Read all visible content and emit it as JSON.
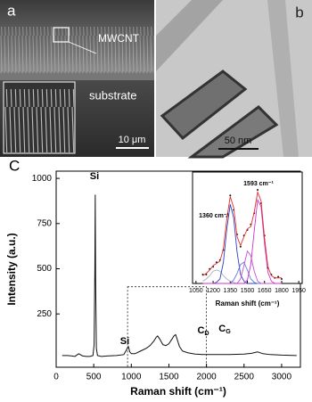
{
  "panels": {
    "a": {
      "label": "a",
      "texts": [
        "MWCNT",
        "substrate",
        "10 μm"
      ]
    },
    "b": {
      "label": "b",
      "scale": "50 nm"
    }
  },
  "chart_data": [
    {
      "type": "line",
      "panel_label": "C",
      "xlabel": "Raman shift (cm⁻¹)",
      "ylabel": "Intensity (a.u.)",
      "x": [
        80,
        150,
        200,
        250,
        300,
        350,
        400,
        450,
        490,
        505,
        515,
        520,
        525,
        535,
        550,
        600,
        700,
        800,
        900,
        940,
        960,
        980,
        1000,
        1050,
        1100,
        1150,
        1200,
        1250,
        1300,
        1330,
        1350,
        1380,
        1420,
        1460,
        1500,
        1540,
        1570,
        1590,
        1610,
        1640,
        1680,
        1750,
        1850,
        1950,
        2100,
        2300,
        2500,
        2600,
        2680,
        2750,
        2850,
        3000,
        3200
      ],
      "series": [
        {
          "color": "#111111",
          "values": [
            20,
            20,
            18,
            15,
            30,
            18,
            15,
            15,
            20,
            80,
            500,
            910,
            450,
            60,
            20,
            15,
            18,
            20,
            25,
            55,
            70,
            40,
            30,
            30,
            40,
            50,
            60,
            75,
            100,
            120,
            128,
            110,
            80,
            75,
            85,
            110,
            130,
            135,
            110,
            70,
            45,
            35,
            28,
            25,
            25,
            25,
            28,
            32,
            40,
            30,
            25,
            22,
            20
          ]
        }
      ],
      "xlim": [
        0,
        3250
      ],
      "ylim": [
        -45,
        1040
      ],
      "xticks": [
        0,
        500,
        1000,
        1500,
        2000,
        2500,
        3000
      ],
      "yticks": [
        250,
        500,
        750,
        1000
      ],
      "annotations": [
        {
          "text": "Si"
        },
        {
          "text": "Si"
        },
        {
          "text": "C",
          "sub": "D"
        },
        {
          "text": "C",
          "sub": "G"
        }
      ],
      "zoom_box": {
        "x": [
          950,
          2000
        ],
        "top": 400
      }
    },
    {
      "type": "line",
      "xlabel": "Raman shift (cm⁻¹)",
      "x": [
        1110,
        1140,
        1170,
        1200,
        1230,
        1260,
        1290,
        1320,
        1350,
        1380,
        1410,
        1440,
        1470,
        1500,
        1530,
        1560,
        1590,
        1620,
        1650,
        1680,
        1710,
        1740,
        1770,
        1800
      ],
      "series": [
        {
          "color": "#a8aec4",
          "style": "line",
          "values": [
            0.02,
            0.04,
            0.07,
            0.11,
            0.12,
            0.11,
            0.07,
            0.04,
            0.02,
            0.01,
            0,
            0,
            0,
            0,
            0,
            0,
            0,
            0,
            0,
            0,
            0,
            0,
            0,
            0
          ]
        },
        {
          "color": "#3040c0",
          "style": "line",
          "values": [
            0,
            0,
            0,
            0,
            0.01,
            0.04,
            0.19,
            0.49,
            0.71,
            0.59,
            0.28,
            0.08,
            0.02,
            0,
            0,
            0,
            0,
            0,
            0,
            0,
            0,
            0,
            0,
            0
          ]
        },
        {
          "color": "#5a78e0",
          "style": "line",
          "values": [
            0,
            0,
            0,
            0,
            0,
            0,
            0,
            0,
            0,
            0.03,
            0.09,
            0.17,
            0.19,
            0.12,
            0.04,
            0.01,
            0,
            0,
            0,
            0,
            0,
            0,
            0,
            0
          ]
        },
        {
          "color": "#c850d0",
          "style": "line",
          "values": [
            0,
            0,
            0,
            0,
            0,
            0,
            0,
            0,
            0,
            0,
            0,
            0.04,
            0.16,
            0.29,
            0.25,
            0.11,
            0.02,
            0,
            0,
            0,
            0,
            0,
            0,
            0
          ]
        },
        {
          "color": "#d030c8",
          "style": "line",
          "values": [
            0,
            0,
            0,
            0,
            0,
            0,
            0,
            0,
            0,
            0,
            0,
            0,
            0,
            0.03,
            0.17,
            0.47,
            0.75,
            0.69,
            0.36,
            0.1,
            0.02,
            0,
            0,
            0
          ]
        },
        {
          "color": "#111111",
          "style": "dots",
          "values": [
            0.08,
            0.08,
            0.13,
            0.15,
            0.19,
            0.21,
            0.3,
            0.6,
            0.79,
            0.66,
            0.44,
            0.33,
            0.43,
            0.48,
            0.53,
            0.63,
            0.84,
            0.72,
            0.43,
            0.14,
            0.08,
            0.05,
            0.06,
            0.04
          ]
        },
        {
          "color": "#e0302a",
          "style": "line",
          "values": [
            0.07,
            0.09,
            0.12,
            0.16,
            0.18,
            0.2,
            0.31,
            0.58,
            0.78,
            0.68,
            0.42,
            0.34,
            0.42,
            0.49,
            0.51,
            0.64,
            0.82,
            0.74,
            0.41,
            0.15,
            0.07,
            0.05,
            0.05,
            0.05
          ]
        }
      ],
      "xlim": [
        1020,
        1980
      ],
      "ylim": [
        0,
        1
      ],
      "xticks": [
        1050,
        1200,
        1350,
        1500,
        1650,
        1800,
        1950
      ],
      "annotations": [
        {
          "text": "1360 cm⁻¹"
        },
        {
          "text": "1593 cm⁻¹"
        }
      ]
    }
  ]
}
